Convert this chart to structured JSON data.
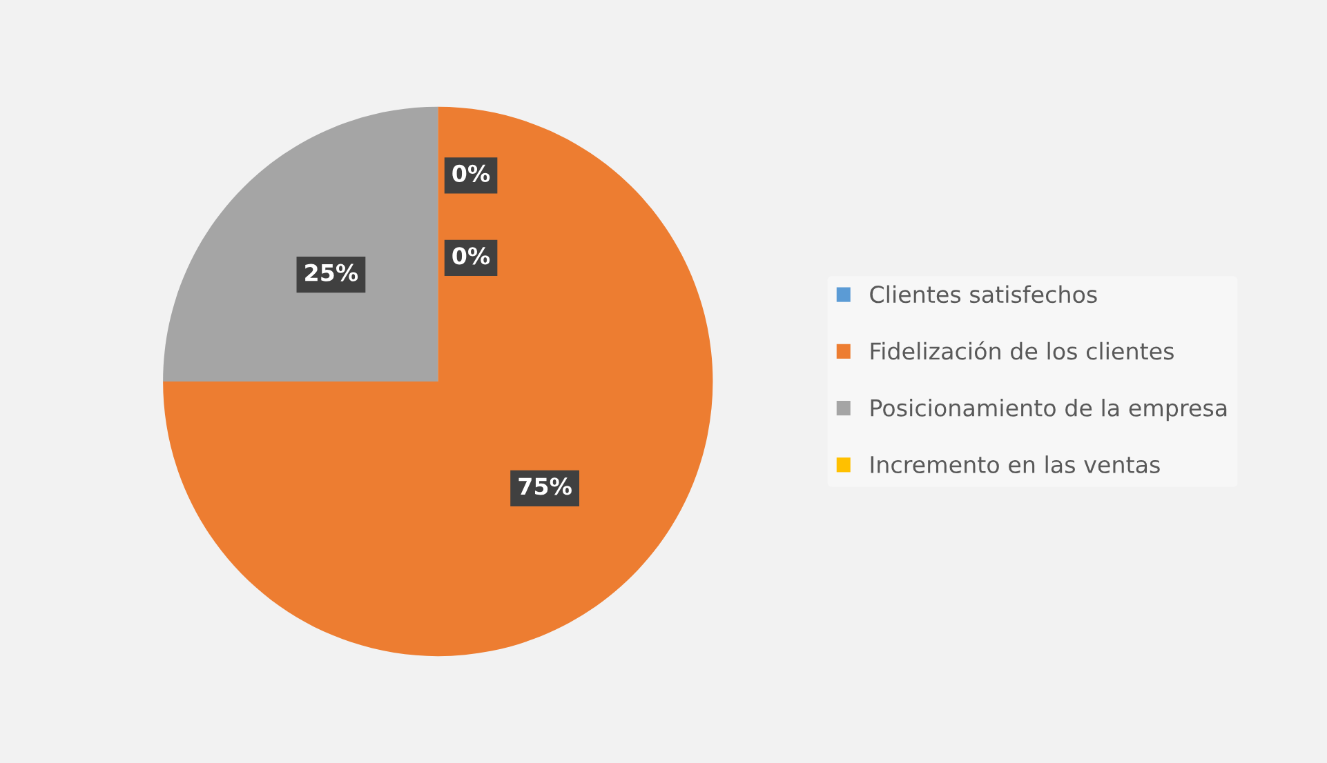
{
  "chart_data": {
    "type": "pie",
    "categories": [
      "Clientes satisfechos",
      "Fidelización de los clientes",
      "Posicionamiento de la empresa",
      "Incremento en las ventas"
    ],
    "values": [
      0,
      75,
      25,
      0
    ],
    "colors": [
      "#5b9bd5",
      "#ed7d31",
      "#a5a5a5",
      "#ffc000"
    ],
    "value_labels": [
      "0%",
      "75%",
      "25%",
      "0%"
    ],
    "legend": "right"
  }
}
